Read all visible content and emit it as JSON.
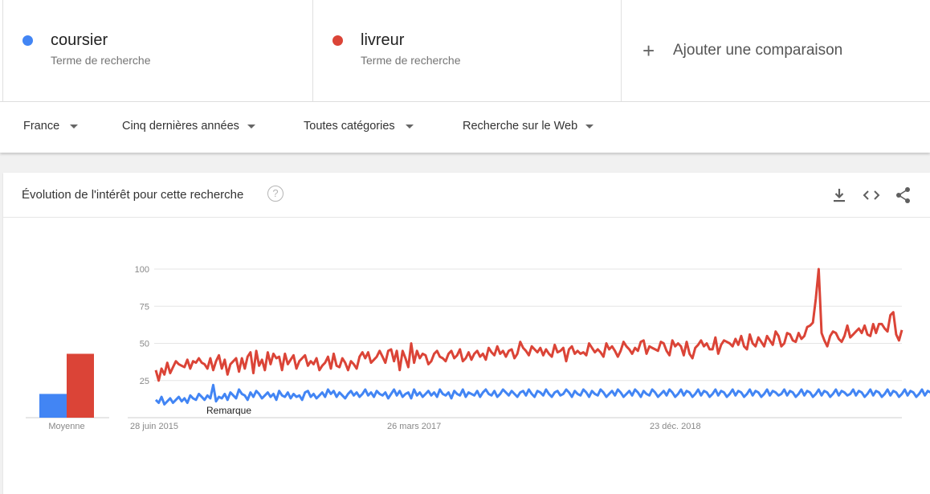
{
  "terms": [
    {
      "name": "coursier",
      "subtitle": "Terme de recherche",
      "color": "#4285f4"
    },
    {
      "name": "livreur",
      "subtitle": "Terme de recherche",
      "color": "#db4437"
    }
  ],
  "add_comparison": {
    "label": "Ajouter une comparaison",
    "icon": "plus-icon"
  },
  "filters": [
    {
      "label": "France"
    },
    {
      "label": "Cinq dernières années"
    },
    {
      "label": "Toutes catégories"
    },
    {
      "label": "Recherche sur le Web"
    }
  ],
  "card": {
    "title": "Évolution de l'intérêt pour cette recherche",
    "help_icon": "?",
    "tools": [
      "download-icon",
      "embed-code-icon",
      "share-icon"
    ]
  },
  "chart_data": [
    {
      "type": "bar",
      "categories": [
        "Moyenne"
      ],
      "series": [
        {
          "name": "coursier",
          "color": "#4285f4",
          "values": [
            16
          ]
        },
        {
          "name": "livreur",
          "color": "#db4437",
          "values": [
            43
          ]
        }
      ],
      "xlabel": "Moyenne",
      "ylim": [
        0,
        100
      ]
    },
    {
      "type": "line",
      "ylim": [
        0,
        100
      ],
      "y_ticks": [
        25,
        50,
        75,
        100
      ],
      "x_tick_labels": [
        "28 juin 2015",
        "26 mars 2017",
        "23 déc. 2018"
      ],
      "annotation": "Remarque",
      "grid": true,
      "weeks": 261,
      "series": [
        {
          "name": "livreur",
          "color": "#db4437",
          "values": [
            32,
            25,
            33,
            29,
            37,
            30,
            34,
            38,
            36,
            35,
            34,
            39,
            33,
            38,
            37,
            40,
            37,
            36,
            33,
            40,
            32,
            38,
            42,
            33,
            39,
            29,
            36,
            38,
            40,
            31,
            40,
            33,
            41,
            44,
            30,
            45,
            35,
            39,
            32,
            44,
            36,
            43,
            40,
            41,
            32,
            43,
            36,
            39,
            42,
            33,
            38,
            40,
            42,
            35,
            38,
            36,
            40,
            32,
            35,
            37,
            41,
            33,
            43,
            35,
            34,
            40,
            37,
            32,
            38,
            36,
            33,
            41,
            44,
            40,
            44,
            37,
            39,
            41,
            45,
            41,
            37,
            45,
            46,
            38,
            45,
            32,
            45,
            40,
            34,
            50,
            37,
            45,
            40,
            43,
            42,
            36,
            38,
            43,
            45,
            41,
            40,
            38,
            43,
            45,
            40,
            42,
            46,
            38,
            40,
            44,
            39,
            43,
            45,
            41,
            43,
            39,
            47,
            44,
            42,
            48,
            43,
            45,
            41,
            45,
            46,
            40,
            43,
            51,
            47,
            45,
            42,
            48,
            46,
            44,
            47,
            42,
            46,
            43,
            41,
            49,
            44,
            45,
            47,
            38,
            46,
            48,
            43,
            45,
            43,
            44,
            42,
            50,
            47,
            44,
            46,
            44,
            41,
            50,
            46,
            48,
            45,
            41,
            45,
            51,
            48,
            46,
            43,
            47,
            45,
            51,
            52,
            43,
            48,
            47,
            46,
            45,
            51,
            50,
            45,
            42,
            52,
            48,
            50,
            48,
            42,
            51,
            43,
            40,
            47,
            49,
            52,
            48,
            50,
            46,
            46,
            54,
            43,
            49,
            52,
            51,
            50,
            48,
            53,
            49,
            55,
            48,
            46,
            56,
            50,
            48,
            54,
            51,
            48,
            55,
            52,
            49,
            58,
            55,
            48,
            50,
            57,
            56,
            52,
            51,
            57,
            53,
            55,
            61,
            62,
            64,
            80,
            100,
            57,
            52,
            48,
            55,
            58,
            57,
            53,
            51,
            55,
            62,
            54,
            56,
            58,
            60,
            57,
            62,
            56,
            55,
            63,
            57,
            63,
            63,
            60,
            58,
            69,
            71,
            56,
            52,
            59
          ]
        },
        {
          "name": "coursier",
          "color": "#4285f4",
          "values": [
            12,
            10,
            14,
            9,
            11,
            13,
            10,
            12,
            14,
            11,
            13,
            10,
            15,
            13,
            12,
            16,
            14,
            12,
            15,
            13,
            22,
            11,
            14,
            13,
            16,
            12,
            17,
            15,
            13,
            19,
            16,
            15,
            12,
            17,
            14,
            18,
            16,
            13,
            15,
            17,
            14,
            16,
            12,
            18,
            15,
            14,
            17,
            13,
            16,
            14,
            15,
            12,
            17,
            18,
            14,
            16,
            13,
            15,
            17,
            14,
            19,
            16,
            18,
            14,
            17,
            15,
            13,
            16,
            18,
            15,
            17,
            14,
            16,
            19,
            15,
            17,
            14,
            18,
            16,
            15,
            17,
            13,
            16,
            19,
            15,
            18,
            14,
            16,
            17,
            13,
            19,
            15,
            17,
            14,
            16,
            18,
            15,
            17,
            14,
            19,
            16,
            15,
            17,
            13,
            18,
            16,
            15,
            19,
            14,
            17,
            16,
            15,
            18,
            14,
            17,
            19,
            16,
            15,
            18,
            14,
            16,
            19,
            17,
            15,
            18,
            16,
            14,
            17,
            18,
            15,
            19,
            16,
            14,
            18,
            17,
            15,
            19,
            16,
            14,
            17,
            18,
            15,
            16,
            19,
            17,
            14,
            18,
            16,
            15,
            19,
            17,
            14,
            18,
            16,
            15,
            19,
            17,
            14,
            16,
            18,
            15,
            19,
            17,
            14,
            16,
            18,
            15,
            19,
            17,
            14,
            18,
            16,
            15,
            19,
            17,
            14,
            16,
            18,
            15,
            19,
            17,
            14,
            16,
            19,
            15,
            18,
            17,
            14,
            16,
            19,
            15,
            18,
            17,
            14,
            16,
            19,
            15,
            18,
            17,
            14,
            16,
            19,
            15,
            18,
            17,
            14,
            16,
            19,
            15,
            18,
            17,
            14,
            16,
            19,
            15,
            18,
            17,
            15,
            16,
            19,
            15,
            18,
            17,
            14,
            16,
            19,
            15,
            18,
            17,
            14,
            16,
            19,
            15,
            18,
            17,
            14,
            16,
            19,
            15,
            18,
            17,
            15,
            16,
            19,
            15,
            18,
            17,
            14,
            16,
            19,
            15,
            18,
            17,
            14,
            16,
            19,
            15,
            18,
            17,
            14,
            16,
            19,
            15,
            18,
            17,
            14,
            16,
            19,
            15,
            18,
            17,
            16,
            20,
            14
          ]
        }
      ]
    }
  ]
}
